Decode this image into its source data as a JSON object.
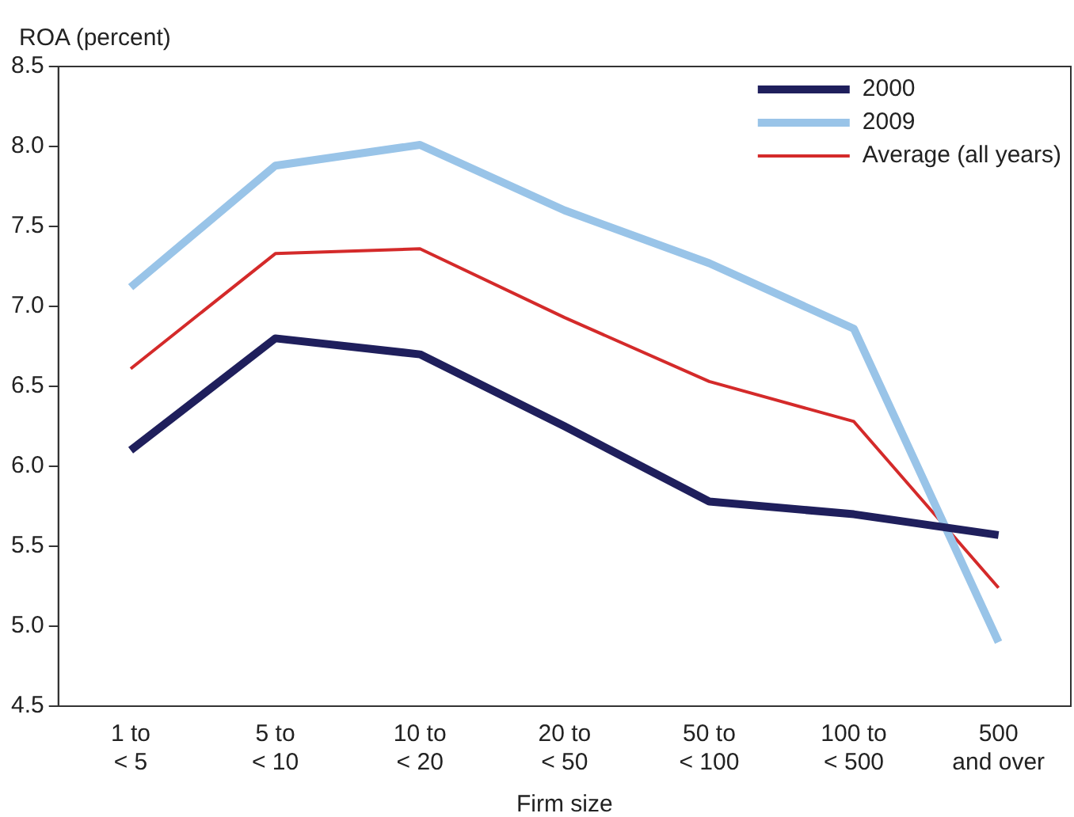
{
  "chart_data": {
    "type": "line",
    "ylabel": "ROA (percent)",
    "xlabel": "Firm size",
    "categories": [
      "1 to\n< 5",
      "5 to\n< 10",
      "10 to\n< 20",
      "20 to\n< 50",
      "50 to\n< 100",
      "100 to\n< 500",
      "500\nand over"
    ],
    "series": [
      {
        "name": "2000",
        "color": "#1f1f5c",
        "values": [
          6.1,
          6.8,
          6.7,
          6.25,
          5.78,
          5.7,
          5.57
        ]
      },
      {
        "name": "2009",
        "color": "#99c4e8",
        "values": [
          7.12,
          7.88,
          8.01,
          7.6,
          7.27,
          6.86,
          4.9
        ]
      },
      {
        "name": "Average (all years)",
        "color": "#d42a2a",
        "values": [
          6.61,
          7.33,
          7.36,
          6.93,
          6.53,
          6.28,
          5.24
        ]
      }
    ],
    "ylim": [
      4.5,
      8.5
    ],
    "yticks": [
      4.5,
      {
        "value": 5,
        "label": "5.0"
      },
      5.5,
      {
        "value": 6,
        "label": "6.0"
      },
      6.5,
      {
        "value": 7,
        "label": "7.0"
      },
      7.5,
      {
        "value": 8,
        "label": "8.0"
      },
      8.5
    ],
    "grid": false,
    "legend": "top right",
    "marker": "none",
    "line_style": "solid"
  }
}
